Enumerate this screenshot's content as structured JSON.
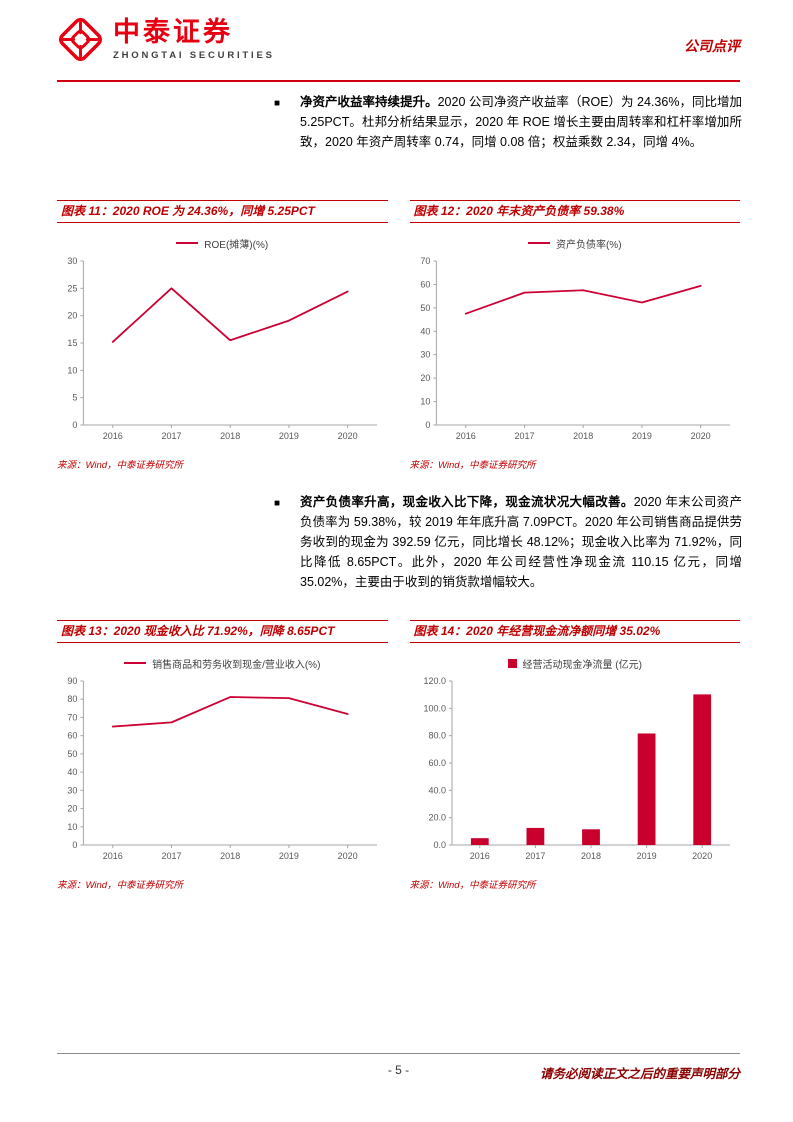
{
  "header": {
    "brand_cn": "中泰证券",
    "brand_en": "ZHONGTAI SECURITIES",
    "doc_type": "公司点评",
    "brand_color": "#e60012",
    "accent_color": "#c00000"
  },
  "paragraphs": [
    {
      "lead": "净资产收益率持续提升。",
      "body": "2020 公司净资产收益率（ROE）为 24.36%，同比增加 5.25PCT。杜邦分析结果显示，2020 年 ROE 增长主要由周转率和杠杆率增加所致，2020 年资产周转率 0.74，同增 0.08 倍；权益乘数 2.34，同增 4%。"
    },
    {
      "lead": "资产负债率升高，现金收入比下降，现金流状况大幅改善。",
      "body": "2020 年末公司资产负债率为 59.38%，较 2019 年年底升高 7.09PCT。2020 年公司销售商品提供劳务收到的现金为 392.59 亿元，同比增长 48.12%；现金收入比率为 71.92%，同比降低 8.65PCT。此外，2020 年公司经营性净现金流 110.15 亿元，同增 35.02%，主要由于收到的销货款增幅较大。"
    }
  ],
  "figures": [
    {
      "title": "图表 11：2020 ROE 为 24.36%，同增 5.25PCT",
      "source": "来源：Wind，中泰证券研究所"
    },
    {
      "title": "图表 12：2020 年末资产负债率 59.38%",
      "source": "来源：Wind，中泰证券研究所"
    },
    {
      "title": "图表 13：2020 现金收入比 71.92%，同降 8.65PCT",
      "source": "来源：Wind，中泰证券研究所"
    },
    {
      "title": "图表 14：2020 年经营现金流净额同增 35.02%",
      "source": "来源：Wind，中泰证券研究所"
    }
  ],
  "chart_data": [
    {
      "type": "line",
      "title": "图表 11：2020 ROE 为 24.36%，同增 5.25PCT",
      "legend": "ROE(摊薄)(%)",
      "categories": [
        "2016",
        "2017",
        "2018",
        "2019",
        "2020"
      ],
      "values": [
        15.2,
        25.0,
        15.5,
        19.1,
        24.4
      ],
      "ylim": [
        0,
        30
      ],
      "yticks": [
        0,
        5,
        10,
        15,
        20,
        25,
        30
      ],
      "ytick_decimals": 0,
      "xlabel": "",
      "ylabel": "",
      "grid": false,
      "legend_position": "top",
      "color": "#cc0033"
    },
    {
      "type": "line",
      "title": "图表 12：2020 年末资产负债率 59.38%",
      "legend": "资产负债率(%)",
      "categories": [
        "2016",
        "2017",
        "2018",
        "2019",
        "2020"
      ],
      "values": [
        47.5,
        56.5,
        57.5,
        52.3,
        59.4
      ],
      "ylim": [
        0,
        70
      ],
      "yticks": [
        0,
        10,
        20,
        30,
        40,
        50,
        60,
        70
      ],
      "ytick_decimals": 0,
      "xlabel": "",
      "ylabel": "",
      "grid": false,
      "legend_position": "top",
      "color": "#cc0033"
    },
    {
      "type": "line",
      "title": "图表 13：2020 现金收入比 71.92%，同降 8.65PCT",
      "legend": "销售商品和劳务收到现金/营业收入(%)",
      "categories": [
        "2016",
        "2017",
        "2018",
        "2019",
        "2020"
      ],
      "values": [
        65.0,
        67.3,
        81.2,
        80.6,
        71.9
      ],
      "ylim": [
        0,
        90
      ],
      "yticks": [
        0,
        10,
        20,
        30,
        40,
        50,
        60,
        70,
        80,
        90
      ],
      "ytick_decimals": 0,
      "xlabel": "",
      "ylabel": "",
      "grid": false,
      "legend_position": "top",
      "color": "#cc0033"
    },
    {
      "type": "bar",
      "title": "图表 14：2020 年经营现金流净额同增 35.02%",
      "legend": "经营活动现金净流量 (亿元)",
      "categories": [
        "2016",
        "2017",
        "2018",
        "2019",
        "2020"
      ],
      "values": [
        5.0,
        12.5,
        11.5,
        81.6,
        110.2
      ],
      "ylim": [
        0,
        120
      ],
      "yticks": [
        0,
        20,
        40,
        60,
        80,
        100,
        120
      ],
      "ytick_decimals": 1,
      "xlabel": "",
      "ylabel": "",
      "grid": false,
      "legend_position": "top",
      "color": "#c9002e"
    }
  ],
  "footer": {
    "page": "- 5 -",
    "disclaimer": "请务必阅读正文之后的重要声明部分"
  }
}
